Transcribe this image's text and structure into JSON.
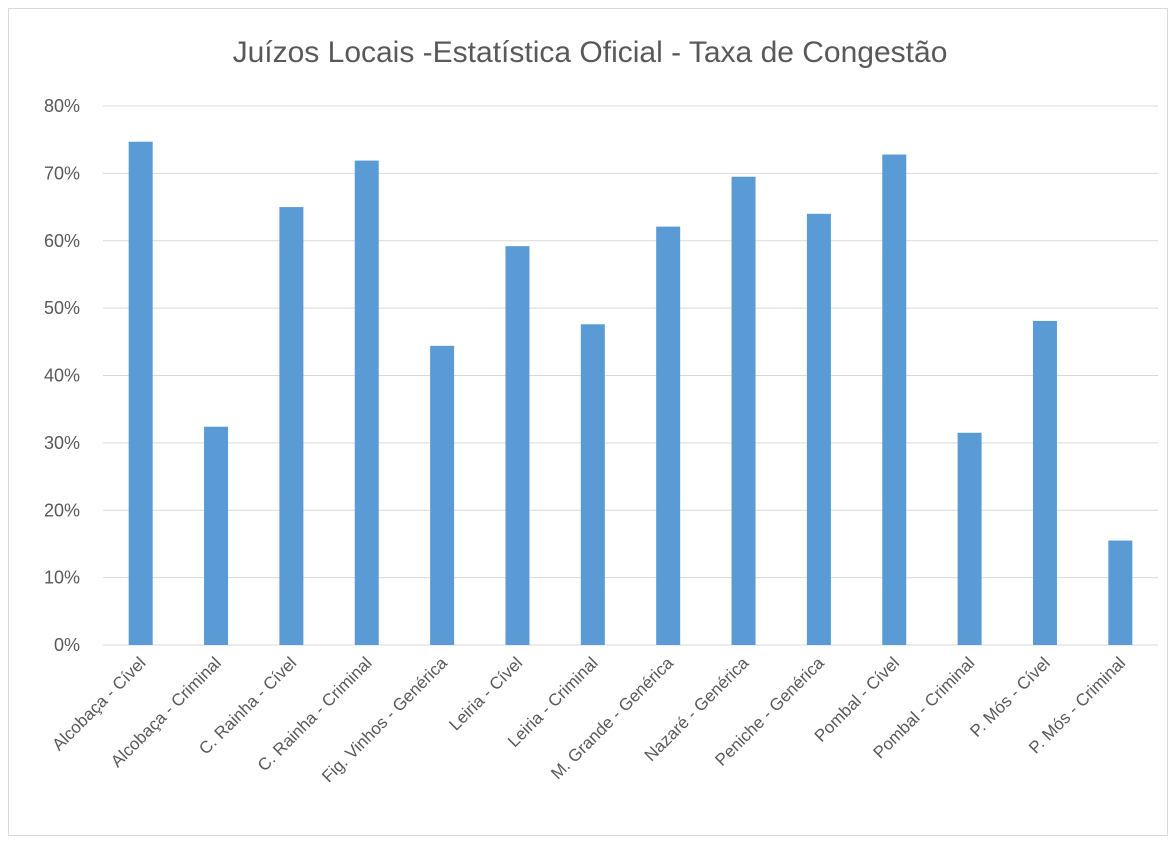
{
  "chart_data": {
    "type": "bar",
    "title": "Juízos Locais -Estatística Oficial - Taxa de Congestão",
    "xlabel": "",
    "ylabel": "",
    "ylim": [
      0,
      0.8
    ],
    "yticks": [
      "0%",
      "10%",
      "20%",
      "30%",
      "40%",
      "50%",
      "60%",
      "70%",
      "80%"
    ],
    "grid": true,
    "legend": "none",
    "color": "#5b9bd5",
    "categories": [
      "Alcobaça - Cível",
      "Alcobaça - Criminal",
      "C. Rainha - Cível",
      "C. Rainha - Criminal",
      "Fig. Vinhos - Genérica",
      "Leiria - Cível",
      "Leiria - Criminal",
      "M. Grande - Genérica",
      "Nazaré - Genérica",
      "Peniche - Genérica",
      "Pombal - Cível",
      "Pombal - Criminal",
      "P. Mós - Cível",
      "P. Mós - Criminal"
    ],
    "values": [
      0.747,
      0.324,
      0.65,
      0.719,
      0.444,
      0.592,
      0.476,
      0.621,
      0.695,
      0.64,
      0.728,
      0.315,
      0.481,
      0.155
    ]
  }
}
